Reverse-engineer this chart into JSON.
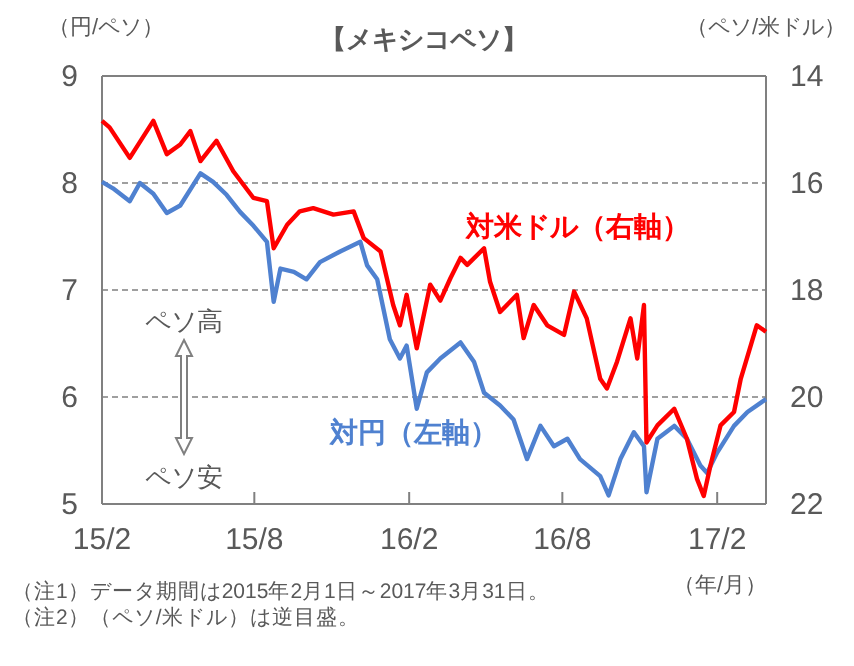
{
  "chart_data": {
    "type": "line",
    "title": "【メキシコペソ】",
    "ylabel": "（円/ペソ）",
    "y2label": "（ペソ/米ドル）",
    "xlabel": "（年/月）",
    "xlim": [
      "2015-02-01",
      "2017-03-31"
    ],
    "xticks": [
      {
        "value": "2015-02-01",
        "label": "15/2"
      },
      {
        "value": "2015-08-01",
        "label": "15/8"
      },
      {
        "value": "2016-02-01",
        "label": "16/2"
      },
      {
        "value": "2016-08-01",
        "label": "16/8"
      },
      {
        "value": "2017-02-01",
        "label": "17/2"
      }
    ],
    "ylim": [
      5,
      9
    ],
    "yticks": [
      5,
      6,
      7,
      8,
      9
    ],
    "y2lim": [
      22,
      14
    ],
    "y2ticks": [
      14,
      16,
      18,
      20,
      22
    ],
    "grid": "y",
    "annotations": [
      "ペソ高",
      "ペソ安",
      "（注1）データ期間は2015年2月1日～2017年3月31日。",
      "（注2）（ペソ/米ドル）は逆目盛。"
    ],
    "series": [
      {
        "name": "対円（左軸）",
        "color": "#4f81d0",
        "x": [
          "2015-02-01",
          "2015-02-14",
          "2015-03-06",
          "2015-03-18",
          "2015-04-03",
          "2015-04-19",
          "2015-05-05",
          "2015-05-29",
          "2015-06-13",
          "2015-06-29",
          "2015-07-15",
          "2015-07-31",
          "2015-08-16",
          "2015-08-24",
          "2015-09-01",
          "2015-09-17",
          "2015-10-02",
          "2015-10-18",
          "2015-11-11",
          "2015-12-05",
          "2015-12-13",
          "2015-12-25",
          "2016-01-09",
          "2016-01-21",
          "2016-01-29",
          "2016-02-10",
          "2016-02-22",
          "2016-03-09",
          "2016-04-02",
          "2016-04-18",
          "2016-04-30",
          "2016-05-19",
          "2016-06-04",
          "2016-06-20",
          "2016-07-06",
          "2016-07-22",
          "2016-08-07",
          "2016-08-22",
          "2016-09-15",
          "2016-09-25",
          "2016-10-09",
          "2016-10-25",
          "2016-11-06",
          "2016-11-09",
          "2016-11-22",
          "2016-12-12",
          "2016-12-27",
          "2017-01-12",
          "2017-01-20",
          "2017-02-01",
          "2017-02-21",
          "2017-03-09",
          "2017-03-31"
        ],
        "values": [
          8.01,
          7.95,
          7.83,
          8.0,
          7.9,
          7.72,
          7.79,
          8.09,
          8.01,
          7.89,
          7.73,
          7.6,
          7.45,
          6.89,
          7.2,
          7.17,
          7.1,
          7.26,
          7.36,
          7.45,
          7.23,
          7.1,
          6.54,
          6.36,
          6.48,
          5.89,
          6.23,
          6.36,
          6.51,
          6.33,
          6.04,
          5.92,
          5.79,
          5.42,
          5.73,
          5.54,
          5.61,
          5.42,
          5.26,
          5.08,
          5.42,
          5.67,
          5.54,
          5.11,
          5.61,
          5.73,
          5.61,
          5.36,
          5.29,
          5.48,
          5.73,
          5.86,
          5.98
        ]
      },
      {
        "name": "対米ドル（右軸）",
        "color": "#ff0000",
        "axis": "y2",
        "x": [
          "2015-02-01",
          "2015-02-10",
          "2015-03-06",
          "2015-04-03",
          "2015-04-19",
          "2015-05-05",
          "2015-05-17",
          "2015-05-29",
          "2015-06-17",
          "2015-07-07",
          "2015-07-31",
          "2015-08-16",
          "2015-08-24",
          "2015-09-09",
          "2015-09-24",
          "2015-10-10",
          "2015-11-03",
          "2015-11-27",
          "2015-12-09",
          "2015-12-29",
          "2016-01-13",
          "2016-01-21",
          "2016-01-29",
          "2016-02-10",
          "2016-02-26",
          "2016-03-09",
          "2016-03-21",
          "2016-04-02",
          "2016-04-10",
          "2016-04-30",
          "2016-05-07",
          "2016-05-19",
          "2016-06-08",
          "2016-06-16",
          "2016-06-28",
          "2016-07-14",
          "2016-08-03",
          "2016-08-15",
          "2016-08-30",
          "2016-09-15",
          "2016-09-23",
          "2016-10-05",
          "2016-10-21",
          "2016-10-29",
          "2016-11-06",
          "2016-11-09",
          "2016-11-22",
          "2016-12-12",
          "2016-12-27",
          "2017-01-08",
          "2017-01-16",
          "2017-01-24",
          "2017-02-05",
          "2017-02-21",
          "2017-03-01",
          "2017-03-13",
          "2017-03-20",
          "2017-03-31"
        ],
        "values": [
          14.84,
          14.96,
          15.53,
          14.84,
          15.46,
          15.28,
          15.03,
          15.59,
          15.21,
          15.78,
          16.28,
          16.34,
          17.22,
          16.78,
          16.53,
          16.47,
          16.59,
          16.53,
          17.03,
          17.28,
          18.28,
          18.66,
          18.09,
          19.09,
          17.9,
          18.2,
          17.78,
          17.4,
          17.53,
          17.22,
          17.84,
          18.41,
          18.09,
          18.9,
          18.28,
          18.66,
          18.84,
          18.03,
          18.53,
          19.66,
          19.84,
          19.34,
          18.53,
          19.28,
          18.28,
          20.85,
          20.53,
          20.22,
          20.78,
          21.53,
          21.85,
          21.28,
          20.53,
          20.28,
          19.66,
          19.03,
          18.66,
          18.78
        ]
      }
    ]
  }
}
